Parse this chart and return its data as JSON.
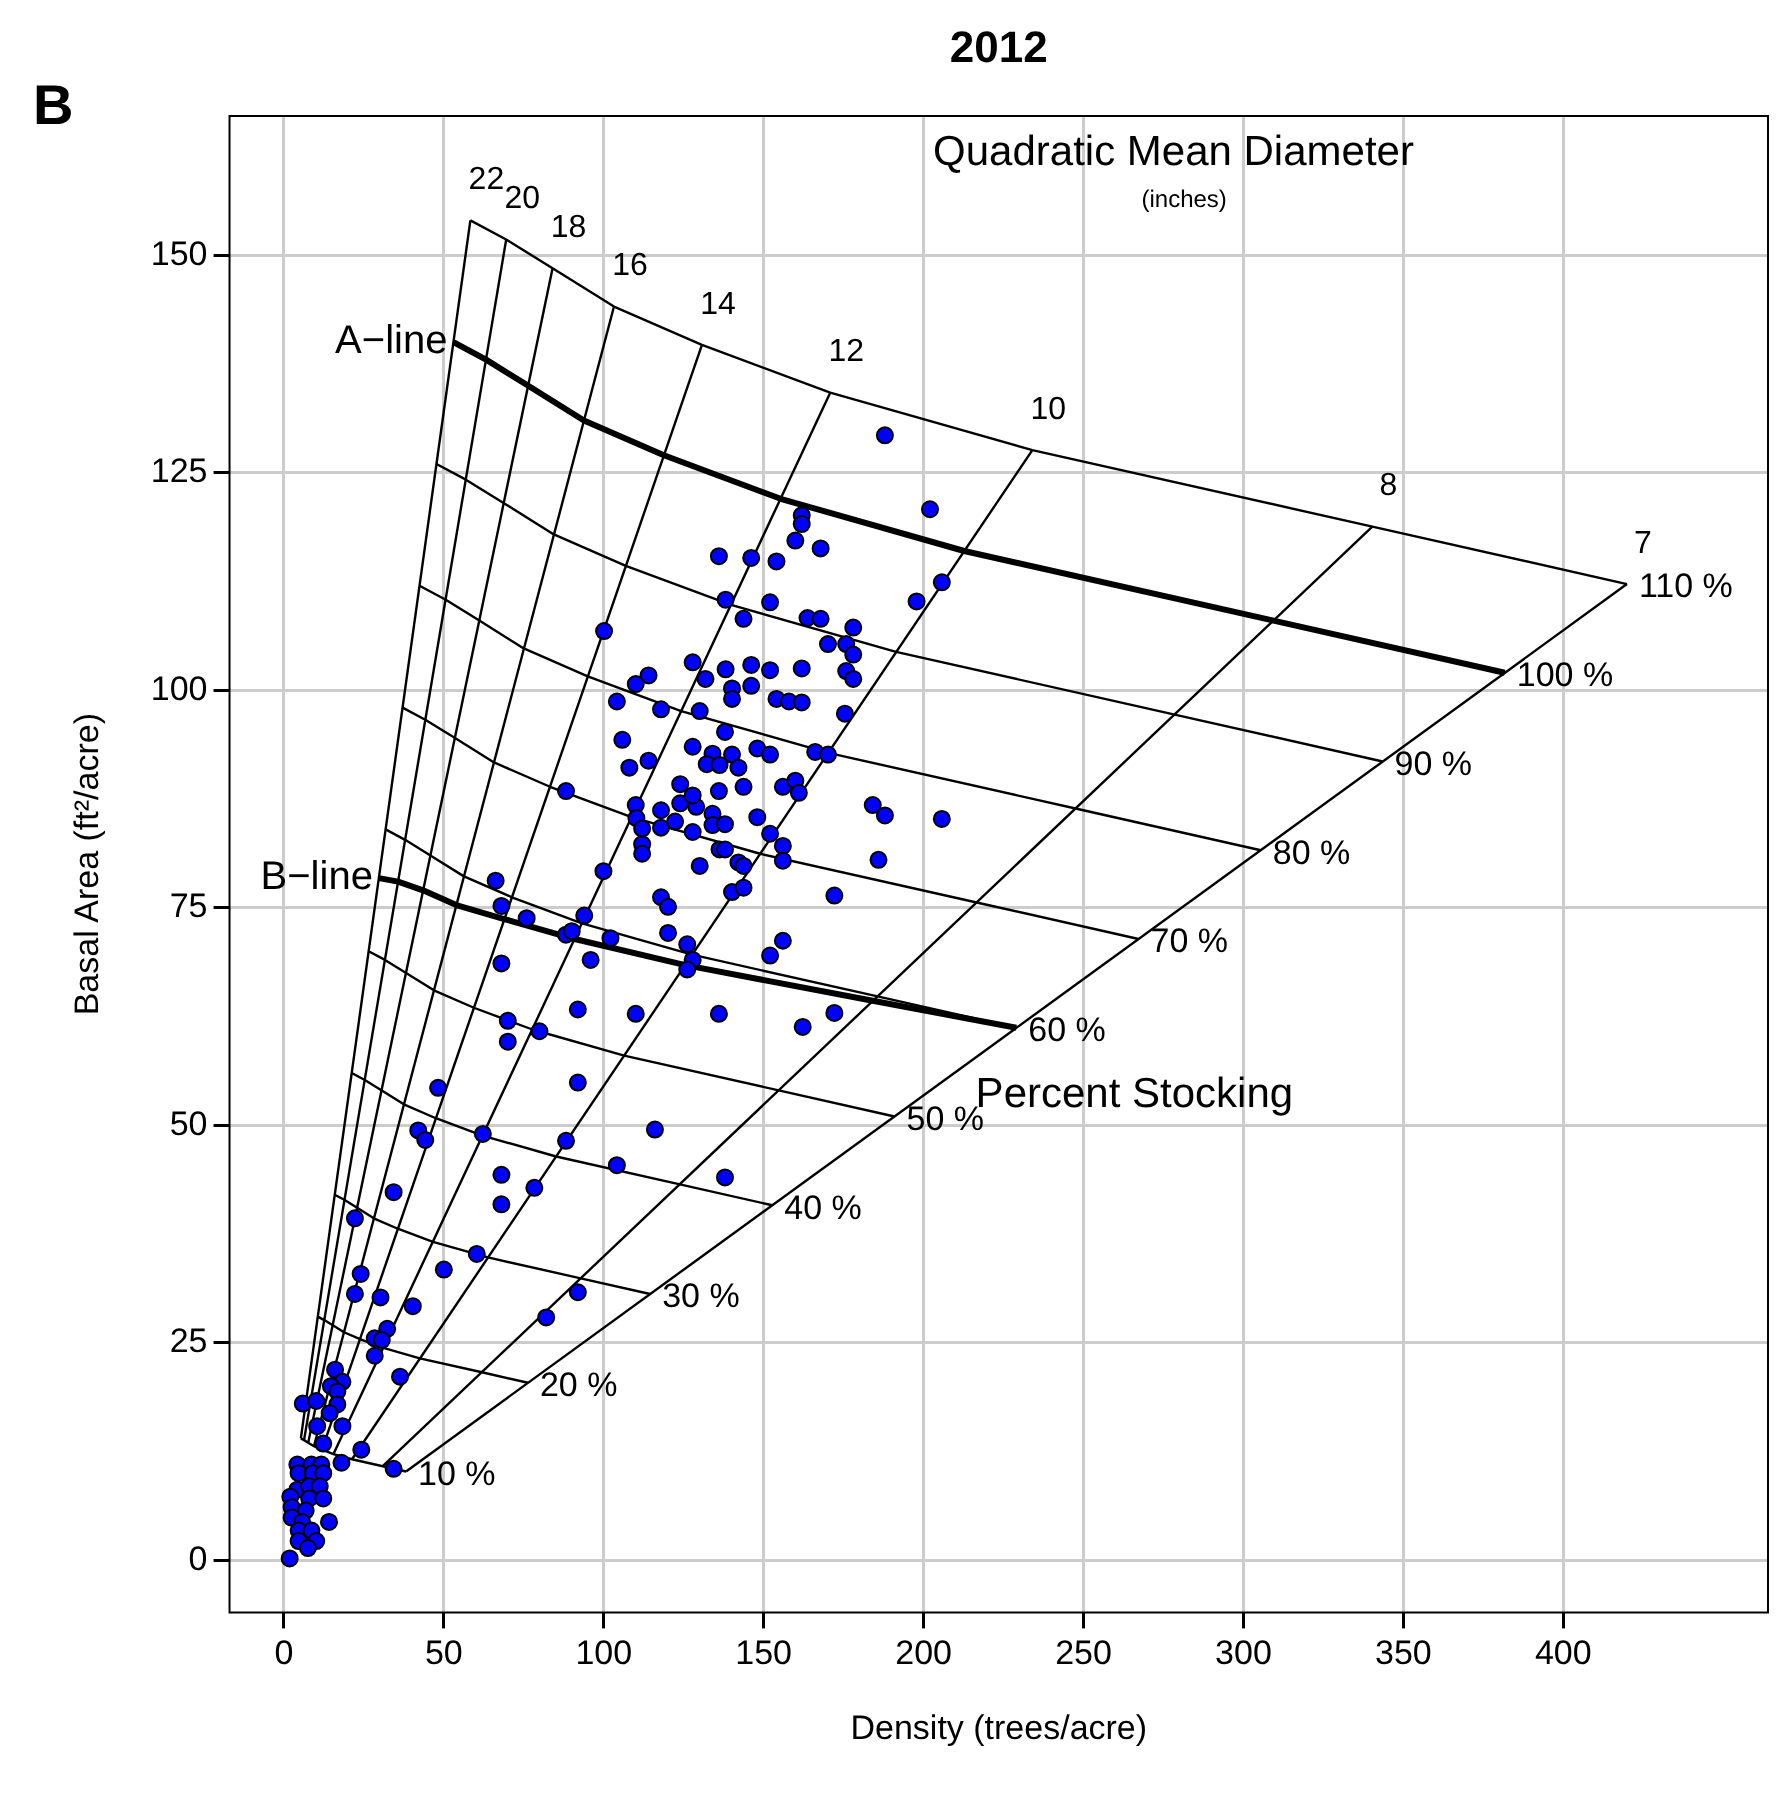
{
  "chart_data": {
    "type": "scatter",
    "title": "2012",
    "xlabel": "Density (trees/acre)",
    "ylabel": "Basal Area (ft²/acre)",
    "xlim": [
      -17,
      464
    ],
    "ylim": [
      -6,
      166
    ],
    "xticks": [
      0,
      50,
      100,
      150,
      200,
      250,
      300,
      350,
      400
    ],
    "yticks": [
      0,
      25,
      50,
      75,
      100,
      125,
      150
    ],
    "grid": true,
    "series": [
      {
        "color": "#0000ff",
        "marker": "circle",
        "x": [
          187.9,
          202.0,
          161.9,
          161.9,
          159.9,
          167.8,
          136.0,
          146.1,
          154.0,
          205.7,
          197.8,
          138.1,
          152.0,
          100.1,
          143.7,
          163.7,
          167.8,
          178.0,
          170.1,
          175.8,
          178.0,
          127.8,
          138.1,
          146.1,
          152.0,
          161.9,
          175.8,
          178.0,
          114.0,
          110.0,
          131.8,
          140.1,
          146.1,
          104.1,
          117.9,
          130.0,
          140.1,
          154.0,
          157.9,
          161.9,
          175.4,
          137.9,
          105.8,
          127.8,
          134.0,
          140.1,
          148.0,
          152.0,
          166.1,
          170.1,
          108.0,
          114.0,
          132.2,
          136.2,
          142.1,
          88.2,
          123.9,
          136.0,
          143.7,
          156.0,
          159.9,
          161.0,
          110.0,
          117.9,
          123.9,
          128.9,
          127.8,
          134.0,
          184.1,
          187.9,
          205.7,
          110.2,
          112.0,
          117.9,
          122.3,
          127.8,
          134.0,
          137.9,
          148.0,
          152.0,
          112.0,
          112.0,
          136.2,
          137.9,
          156.0,
          156.0,
          130.0,
          142.1,
          143.7,
          185.9,
          99.9,
          66.2,
          117.9,
          120.1,
          140.1,
          143.7,
          172.1,
          68.0,
          75.9,
          93.9,
          88.2,
          90.0,
          102.1,
          120.1,
          126.1,
          156.0,
          152.0,
          127.8,
          68.0,
          95.9,
          126.1,
          91.9,
          110.0,
          136.0,
          162.2,
          172.1,
          70.0,
          79.9,
          70.0,
          48.2,
          91.9,
          42.0,
          44.2,
          62.2,
          88.2,
          116.0,
          104.1,
          68.0,
          137.9,
          34.3,
          78.3,
          68.0,
          22.2,
          60.3,
          50.0,
          24.0,
          22.2,
          30.2,
          40.3,
          91.9,
          82.0,
          32.3,
          28.4,
          30.6,
          28.4,
          36.3,
          16.0,
          18.3,
          14.7,
          16.7,
          5.9,
          10.1,
          16.7,
          14.3,
          10.4,
          18.3,
          12.3,
          24.2,
          18.0,
          34.3,
          4.2,
          8.6,
          11.7,
          4.6,
          9.0,
          12.3,
          4.2,
          7.9,
          11.2,
          2.0,
          7.9,
          12.3,
          2.4,
          6.8,
          2.4,
          5.7,
          14.1,
          4.6,
          8.6,
          4.6,
          10.1,
          7.5,
          1.8
        ],
        "values": [
          129.3,
          120.8,
          120.1,
          119.1,
          117.2,
          116.3,
          115.4,
          115.2,
          114.8,
          112.4,
          110.2,
          110.4,
          110.1,
          106.8,
          108.2,
          108.3,
          108.2,
          107.2,
          105.3,
          105.3,
          104.1,
          103.2,
          102.4,
          102.9,
          102.3,
          102.5,
          102.2,
          101.3,
          101.7,
          100.7,
          101.3,
          100.2,
          100.5,
          98.7,
          97.8,
          97.6,
          99.0,
          99.0,
          98.7,
          98.6,
          97.3,
          95.2,
          94.3,
          93.5,
          92.7,
          92.6,
          93.3,
          92.6,
          92.9,
          92.6,
          91.1,
          91.9,
          91.5,
          91.4,
          91.1,
          88.4,
          89.2,
          88.4,
          88.9,
          88.9,
          89.6,
          88.2,
          86.8,
          86.2,
          87.0,
          86.6,
          87.9,
          85.8,
          86.8,
          85.6,
          85.2,
          85.3,
          84.1,
          84.2,
          84.9,
          83.7,
          84.5,
          84.6,
          85.4,
          83.5,
          82.3,
          81.2,
          81.7,
          81.7,
          82.1,
          80.4,
          79.8,
          80.2,
          79.8,
          80.5,
          79.2,
          78.1,
          76.2,
          75.1,
          76.8,
          77.3,
          76.4,
          75.2,
          73.8,
          74.1,
          71.9,
          72.3,
          71.5,
          72.1,
          70.8,
          71.2,
          69.5,
          69.0,
          68.6,
          69.0,
          67.9,
          63.3,
          62.8,
          62.8,
          61.3,
          62.9,
          62.0,
          60.8,
          59.6,
          54.3,
          54.9,
          49.4,
          48.3,
          49.0,
          48.2,
          49.5,
          45.4,
          44.3,
          44.0,
          42.3,
          42.8,
          40.9,
          39.3,
          35.2,
          33.4,
          32.9,
          30.6,
          30.2,
          29.2,
          30.8,
          27.9,
          26.6,
          25.5,
          25.3,
          23.5,
          21.1,
          21.9,
          20.5,
          20.0,
          19.4,
          18.0,
          18.3,
          17.9,
          16.9,
          15.4,
          15.4,
          13.4,
          12.7,
          11.2,
          10.5,
          11.0,
          11.0,
          11.0,
          10.0,
          10.0,
          10.0,
          8.1,
          8.5,
          8.5,
          7.3,
          7.1,
          7.1,
          6.1,
          5.7,
          4.9,
          4.4,
          4.4,
          3.4,
          3.4,
          2.2,
          2.2,
          1.4,
          0.2
        ]
      },
      {
        "type": "line",
        "color": "#000000",
        "x": [
          5.3,
          6.3,
          7.6,
          9.4,
          11.9,
          15.5,
          21.3,
          30.9,
          38.2
        ],
        "values": [
          14,
          13.8,
          13.5,
          13.1,
          12.7,
          12.2,
          11.6,
          10.8,
          10.2
        ]
      },
      {
        "type": "line",
        "color": "#000000",
        "x": [
          10.6,
          12.6,
          15.3,
          18.8,
          23.8,
          31.1,
          42.5,
          61.9,
          76.3
        ],
        "values": [
          28,
          27.6,
          27,
          26.2,
          25.4,
          24.4,
          23.2,
          21.6,
          20.4
        ]
      },
      {
        "type": "line",
        "color": "#000000",
        "x": [
          15.9,
          19,
          22.9,
          28.1,
          35.6,
          46.6,
          63.8,
          92.8,
          114.5
        ],
        "values": [
          42,
          41.4,
          40.5,
          39.3,
          38.1,
          36.6,
          34.8,
          32.4,
          30.6
        ]
      },
      {
        "type": "line",
        "color": "#000000",
        "x": [
          21.2,
          25.3,
          30.6,
          37.5,
          47.5,
          62.1,
          85.1,
          123.8,
          152.7
        ],
        "values": [
          56,
          55.2,
          54,
          52.4,
          50.8,
          48.8,
          46.4,
          43.2,
          40.8
        ]
      },
      {
        "type": "line",
        "color": "#000000",
        "x": [
          26.5,
          31.6,
          38.2,
          46.9,
          59.4,
          77.7,
          106.4,
          154.7,
          190.9
        ],
        "values": [
          70,
          69,
          67.5,
          65.5,
          63.5,
          61,
          58,
          54,
          51
        ]
      },
      {
        "type": "line",
        "color": "#000000",
        "x": [
          31.8,
          37.9,
          45.8,
          56.3,
          71.3,
          93.2,
          127.6,
          185.6,
          229
        ],
        "values": [
          84,
          82.8,
          81,
          78.6,
          76.2,
          73.2,
          69.6,
          64.8,
          61.2
        ]
      },
      {
        "type": "line",
        "color": "#000000",
        "x": [
          37.1,
          44.2,
          53.5,
          65.7,
          83.2,
          108.7,
          148.9,
          216.6,
          267.2
        ],
        "values": [
          98,
          96.6,
          94.5,
          91.7,
          88.9,
          85.4,
          81.2,
          75.6,
          71.4
        ]
      },
      {
        "type": "line",
        "color": "#000000",
        "x": [
          42.4,
          50.6,
          61.1,
          75,
          95,
          124.2,
          170.2,
          247.5,
          305.4
        ],
        "values": [
          112,
          110.4,
          108,
          104.8,
          101.6,
          97.6,
          92.8,
          86.4,
          81.6
        ]
      },
      {
        "type": "line",
        "color": "#000000",
        "x": [
          47.7,
          56.9,
          68.8,
          84.4,
          106.9,
          139.8,
          191.4,
          278.5,
          343.5
        ],
        "values": [
          126,
          124.2,
          121.5,
          117.9,
          114.3,
          109.8,
          104.4,
          97.2,
          91.8
        ]
      },
      {
        "type": "line",
        "color": "#000000",
        "x": [
          53,
          63.2,
          76.4,
          93.8,
          118.8,
          155.3,
          212.7,
          309.4,
          381.7
        ],
        "values": [
          140,
          138,
          135,
          131,
          127,
          122,
          116,
          108,
          102
        ]
      },
      {
        "type": "line",
        "color": "#000000",
        "x": [
          58.3,
          69.5,
          84,
          103.2,
          130.7,
          170.8,
          234,
          340.3,
          419.9
        ],
        "values": [
          154,
          151.8,
          148.5,
          144.1,
          139.7,
          134.2,
          127.6,
          118.8,
          112.2
        ]
      },
      {
        "type": "line",
        "color": "#000000",
        "x": [
          5.3,
          58.3
        ],
        "values": [
          14,
          154
        ]
      },
      {
        "type": "line",
        "color": "#000000",
        "x": [
          6.3,
          69.5
        ],
        "values": [
          13.8,
          151.8
        ]
      },
      {
        "type": "line",
        "color": "#000000",
        "x": [
          7.6,
          84
        ],
        "values": [
          13.5,
          148.5
        ]
      },
      {
        "type": "line",
        "color": "#000000",
        "x": [
          9.4,
          103.2
        ],
        "values": [
          13.1,
          144.1
        ]
      },
      {
        "type": "line",
        "color": "#000000",
        "x": [
          11.9,
          130.7
        ],
        "values": [
          12.7,
          139.7
        ]
      },
      {
        "type": "line",
        "color": "#000000",
        "x": [
          15.5,
          170.8
        ],
        "values": [
          12.2,
          134.2
        ]
      },
      {
        "type": "line",
        "color": "#000000",
        "x": [
          21.3,
          234
        ],
        "values": [
          11.6,
          127.6
        ]
      },
      {
        "type": "line",
        "color": "#000000",
        "x": [
          30.9,
          340.3
        ],
        "values": [
          10.8,
          118.8
        ]
      },
      {
        "type": "line",
        "color": "#000000",
        "x": [
          38.2,
          419.9
        ],
        "values": [
          10.2,
          112.2
        ]
      },
      {
        "type": "line",
        "color": "#000000",
        "x": [
          29.7,
          35.7,
          43.5,
          53.9,
          68.9,
          90.9,
          125.5,
          184.1,
          229
        ],
        "values": [
          78.4,
          78,
          77,
          75.3,
          73.7,
          71.4,
          68.4,
          64.3,
          61.2
        ]
      }
    ],
    "annotations": [
      {
        "text": "10 %",
        "x": 38.2,
        "y": 10.2
      },
      {
        "text": "20 %",
        "x": 76.3,
        "y": 20.4
      },
      {
        "text": "30 %",
        "x": 114.5,
        "y": 30.6
      },
      {
        "text": "40 %",
        "x": 152.7,
        "y": 40.8
      },
      {
        "text": "50 %",
        "x": 190.9,
        "y": 51
      },
      {
        "text": "60 %",
        "x": 229,
        "y": 61.2
      },
      {
        "text": "70 %",
        "x": 267.2,
        "y": 71.4
      },
      {
        "text": "80 %",
        "x": 305.4,
        "y": 81.6
      },
      {
        "text": "90 %",
        "x": 343.5,
        "y": 91.8
      },
      {
        "text": "100 %",
        "x": 381.7,
        "y": 102
      },
      {
        "text": "110 %",
        "x": 419.9,
        "y": 112.2
      },
      {
        "text": "22",
        "x": 58.3,
        "y": 154
      },
      {
        "text": "20",
        "x": 69.5,
        "y": 151.8
      },
      {
        "text": "18",
        "x": 84,
        "y": 148.5
      },
      {
        "text": "16",
        "x": 103.2,
        "y": 144.1
      },
      {
        "text": "14",
        "x": 130.7,
        "y": 139.7
      },
      {
        "text": "12",
        "x": 170.8,
        "y": 134.2
      },
      {
        "text": "10",
        "x": 234,
        "y": 127.6
      },
      {
        "text": "8",
        "x": 340.3,
        "y": 118.8
      },
      {
        "text": "7",
        "x": 419.9,
        "y": 112.2
      },
      {
        "text": "A−line",
        "x": 53,
        "y": 140
      },
      {
        "text": "B−line",
        "x": 29.7,
        "y": 78.4
      },
      "Quadratic Mean Diameter",
      "(inches)",
      "Percent Stocking",
      "B"
    ]
  }
}
